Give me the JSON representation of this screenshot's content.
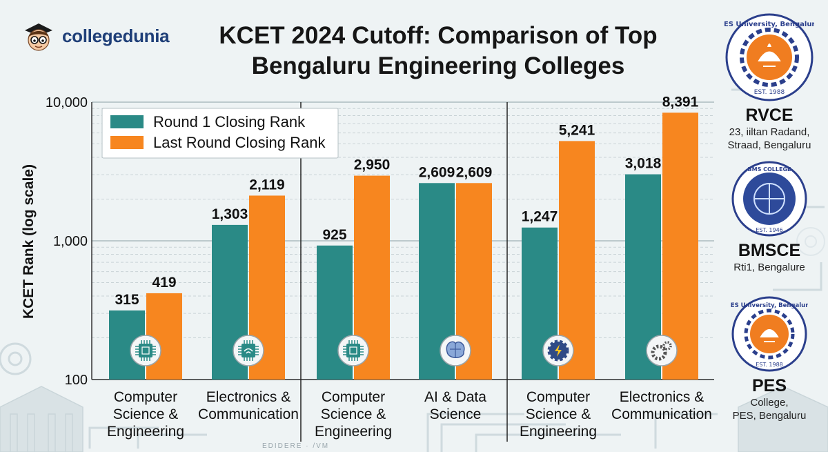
{
  "brand": {
    "name": "collegedunia"
  },
  "title": "KCET 2024 Cutoff: Comparison of Top Bengaluru Engineering Colleges",
  "chart_data": {
    "type": "bar",
    "y_scale": "log",
    "ylim": [
      100,
      10000
    ],
    "y_ticks": [
      {
        "value": 100,
        "label": "100"
      },
      {
        "value": 1000,
        "label": "1,000"
      },
      {
        "value": 10000,
        "label": "10,000"
      }
    ],
    "ylabel": "KCET Rank (log scale)",
    "legend_position": "top-left",
    "grid": true,
    "categories": [
      "Computer Science & Engineering",
      "Electronics & Communication",
      "Computer Science & Engineering",
      "AI & Data Science",
      "Computer Science & Engineering",
      "Electronics & Communication"
    ],
    "category_lines": [
      [
        "Computer",
        "Science &",
        "Engineering"
      ],
      [
        "Electronics &",
        "Communication"
      ],
      [
        "Computer",
        "Science &",
        "Engineering"
      ],
      [
        "AI & Data",
        "Science"
      ],
      [
        "Computer",
        "Science &",
        "Engineering"
      ],
      [
        "Electronics &",
        "Communication"
      ]
    ],
    "category_icons": [
      "cpu-chip-icon",
      "wifi-chip-icon",
      "cpu-chip-icon",
      "brain-circuit-icon",
      "gear-bolt-icon",
      "gears-icon"
    ],
    "series": [
      {
        "name": "Round 1 Closing Rank",
        "color": "#2a8a86",
        "values": [
          315,
          1303,
          925,
          2609,
          1247,
          3018
        ],
        "labels": [
          "315",
          "1,303",
          "925",
          "2,609",
          "1,247",
          "3,018"
        ]
      },
      {
        "name": "Last Round Closing Rank",
        "color": "#f7861f",
        "values": [
          419,
          2119,
          2950,
          2609,
          5241,
          8391
        ],
        "labels": [
          "419",
          "2,119",
          "2,950",
          "2,609",
          "5,241",
          "8,391"
        ]
      }
    ]
  },
  "colleges": [
    {
      "name": "RVCE",
      "address_lines": [
        "23, iiltan Radand,",
        "Straad, Bengaluru"
      ],
      "seal_text": "PES University, Bengaluru",
      "seal_est": "EST. 1988"
    },
    {
      "name": "BMSCE",
      "address_lines": [
        "Rti1, Bengalure"
      ],
      "seal_text": "BMS COLLEGE OF ENGINEERING",
      "seal_est": "EST. 1946"
    },
    {
      "name": "PES",
      "address_lines": [
        "College,",
        "PES, Bengaluru"
      ],
      "seal_text": "PES University, Bengaluru",
      "seal_est": "EST. 1988"
    }
  ],
  "footer": "EDIDERE · /VM"
}
